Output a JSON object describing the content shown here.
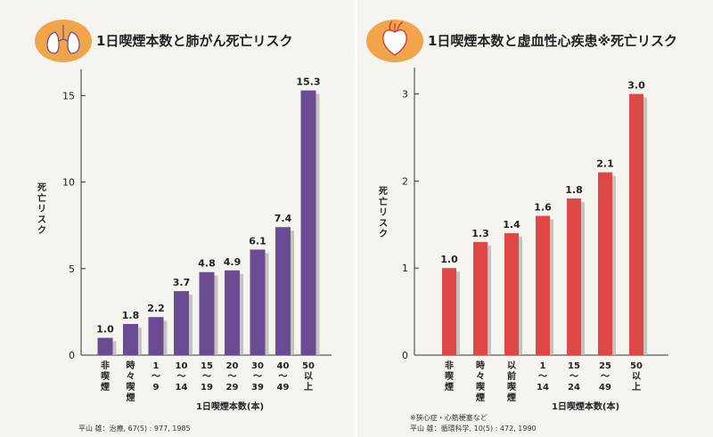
{
  "colors": {
    "badge": "#f0a54a",
    "bar_left": "#6a4c93",
    "bar_right": "#e04848",
    "shadow": "#b9b6b2",
    "panel": "#f6f4ee"
  },
  "icons": {
    "left": "lungs-icon",
    "right": "heart-icon"
  },
  "chart_data": [
    {
      "type": "bar",
      "title": "1日喫煙本数と肺がん死亡リスク",
      "ylabel": "死亡リスク",
      "xlabel": "1日喫煙本数(本)",
      "ylim": [
        0,
        16
      ],
      "yticks": [
        "0",
        "5",
        "10",
        "15"
      ],
      "categories": [
        [
          "非",
          "喫",
          "煙"
        ],
        [
          "時",
          "々",
          "喫",
          "煙"
        ],
        [
          "1",
          "〜",
          "9"
        ],
        [
          "10",
          "〜",
          "14"
        ],
        [
          "15",
          "〜",
          "19"
        ],
        [
          "20",
          "〜",
          "29"
        ],
        [
          "30",
          "〜",
          "39"
        ],
        [
          "40",
          "〜",
          "49"
        ],
        [
          "50",
          "以",
          "上"
        ]
      ],
      "values": [
        1.0,
        1.8,
        2.2,
        3.7,
        4.8,
        4.9,
        6.1,
        7.4,
        15.3
      ],
      "value_labels": [
        "1.0",
        "1.8",
        "2.2",
        "3.7",
        "4.8",
        "4.9",
        "6.1",
        "7.4",
        "15.3"
      ],
      "source": [
        "平山 雄：治療, 67(5) : 977, 1985"
      ]
    },
    {
      "type": "bar",
      "title": "1日喫煙本数と虚血性心疾患※死亡リスク",
      "ylabel": "死亡リスク",
      "xlabel": "1日喫煙本数(本)",
      "ylim": [
        0,
        3.2
      ],
      "yticks": [
        "0",
        "1",
        "2",
        "3"
      ],
      "categories": [
        [
          "非",
          "喫",
          "煙"
        ],
        [
          "時",
          "々",
          "喫",
          "煙"
        ],
        [
          "以",
          "前",
          "喫",
          "煙"
        ],
        [
          "1",
          "〜",
          "14"
        ],
        [
          "15",
          "〜",
          "24"
        ],
        [
          "25",
          "〜",
          "49"
        ],
        [
          "50",
          "以",
          "上"
        ]
      ],
      "values": [
        1.0,
        1.3,
        1.4,
        1.6,
        1.8,
        2.1,
        3.0
      ],
      "value_labels": [
        "1.0",
        "1.3",
        "1.4",
        "1.6",
        "1.8",
        "2.1",
        "3.0"
      ],
      "source": [
        "※狭心症・心筋梗塞など",
        "平山 雄：循環科学, 10(5) : 472, 1990"
      ]
    }
  ]
}
